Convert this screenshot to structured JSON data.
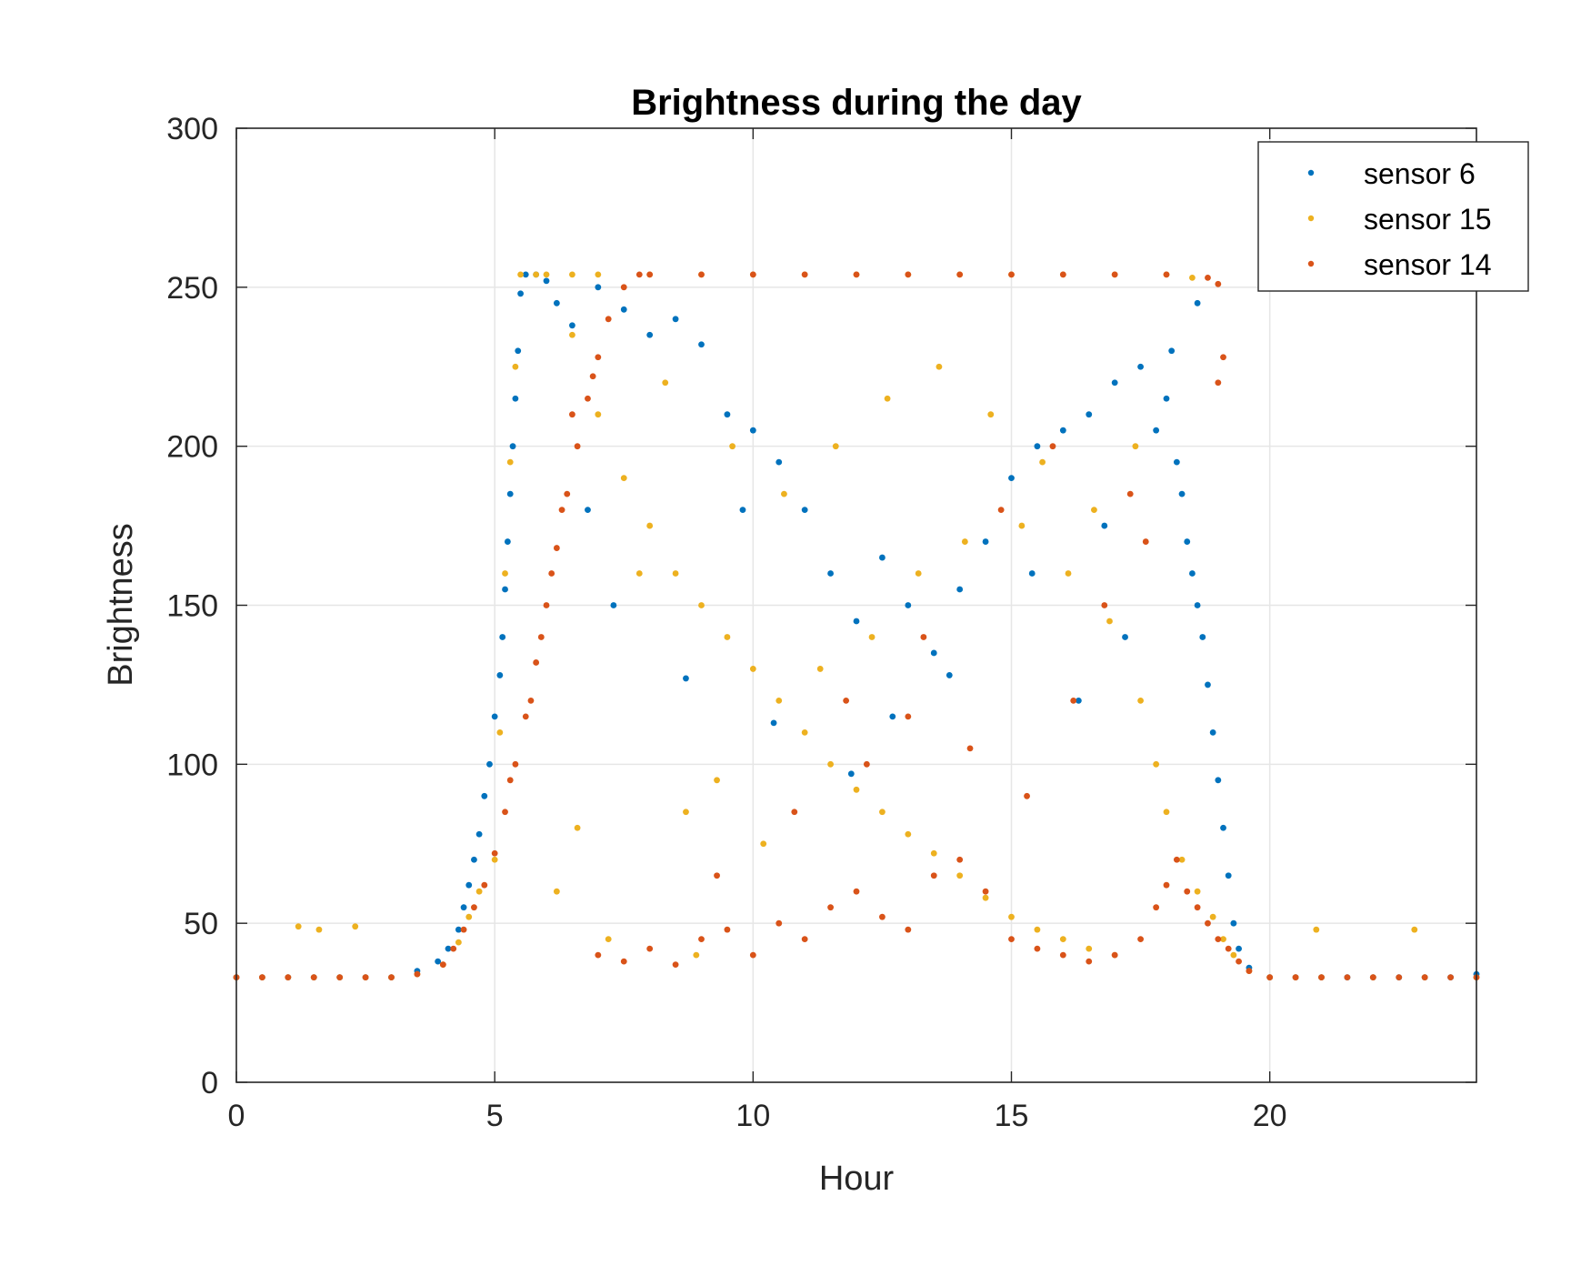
{
  "chart_data": {
    "type": "scatter",
    "title": "Brightness during the day",
    "xlabel": "Hour",
    "ylabel": "Brightness",
    "xlim": [
      0,
      24
    ],
    "ylim": [
      0,
      300
    ],
    "xticks": [
      0,
      5,
      10,
      15,
      20
    ],
    "yticks": [
      0,
      50,
      100,
      150,
      200,
      250,
      300
    ],
    "grid": true,
    "legend_position": "top-right",
    "series": [
      {
        "name": "sensor 6",
        "color": "#0072BD",
        "points": [
          [
            0.0,
            33
          ],
          [
            0.5,
            33
          ],
          [
            1.0,
            33
          ],
          [
            1.5,
            33
          ],
          [
            2.0,
            33
          ],
          [
            2.5,
            33
          ],
          [
            3.0,
            33
          ],
          [
            3.5,
            35
          ],
          [
            3.9,
            38
          ],
          [
            4.1,
            42
          ],
          [
            4.3,
            48
          ],
          [
            4.4,
            55
          ],
          [
            4.5,
            62
          ],
          [
            4.6,
            70
          ],
          [
            4.7,
            78
          ],
          [
            4.8,
            90
          ],
          [
            4.9,
            100
          ],
          [
            5.0,
            115
          ],
          [
            5.1,
            128
          ],
          [
            5.15,
            140
          ],
          [
            5.2,
            155
          ],
          [
            5.25,
            170
          ],
          [
            5.3,
            185
          ],
          [
            5.35,
            200
          ],
          [
            5.4,
            215
          ],
          [
            5.45,
            230
          ],
          [
            5.5,
            248
          ],
          [
            5.6,
            254
          ],
          [
            5.8,
            254
          ],
          [
            6.0,
            252
          ],
          [
            6.2,
            245
          ],
          [
            6.5,
            238
          ],
          [
            7.0,
            250
          ],
          [
            7.5,
            243
          ],
          [
            8.0,
            235
          ],
          [
            8.5,
            240
          ],
          [
            9.0,
            232
          ],
          [
            9.5,
            210
          ],
          [
            10.0,
            205
          ],
          [
            10.5,
            195
          ],
          [
            11.0,
            180
          ],
          [
            11.5,
            160
          ],
          [
            12.0,
            145
          ],
          [
            12.5,
            165
          ],
          [
            13.0,
            150
          ],
          [
            13.5,
            135
          ],
          [
            14.0,
            155
          ],
          [
            14.5,
            170
          ],
          [
            15.0,
            190
          ],
          [
            15.5,
            200
          ],
          [
            16.0,
            205
          ],
          [
            16.5,
            210
          ],
          [
            17.0,
            220
          ],
          [
            17.5,
            225
          ],
          [
            17.8,
            205
          ],
          [
            18.0,
            215
          ],
          [
            18.2,
            195
          ],
          [
            18.3,
            185
          ],
          [
            18.4,
            170
          ],
          [
            18.5,
            160
          ],
          [
            18.6,
            150
          ],
          [
            18.7,
            140
          ],
          [
            18.8,
            125
          ],
          [
            18.9,
            110
          ],
          [
            19.0,
            95
          ],
          [
            19.1,
            80
          ],
          [
            19.2,
            65
          ],
          [
            19.3,
            50
          ],
          [
            19.4,
            42
          ],
          [
            19.6,
            36
          ],
          [
            20.0,
            33
          ],
          [
            20.5,
            33
          ],
          [
            21.0,
            33
          ],
          [
            21.5,
            33
          ],
          [
            22.0,
            33
          ],
          [
            22.5,
            33
          ],
          [
            23.0,
            33
          ],
          [
            23.5,
            33
          ],
          [
            24.0,
            34
          ],
          [
            8.7,
            127
          ],
          [
            10.4,
            113
          ],
          [
            11.9,
            97
          ],
          [
            12.7,
            115
          ],
          [
            13.8,
            128
          ],
          [
            16.3,
            120
          ],
          [
            17.2,
            140
          ],
          [
            6.8,
            180
          ],
          [
            7.3,
            150
          ],
          [
            9.8,
            180
          ],
          [
            15.4,
            160
          ],
          [
            16.8,
            175
          ],
          [
            18.1,
            230
          ],
          [
            18.6,
            245
          ]
        ]
      },
      {
        "name": "sensor 15",
        "color": "#EDB120",
        "points": [
          [
            0.0,
            33
          ],
          [
            0.5,
            33
          ],
          [
            1.0,
            33
          ],
          [
            1.2,
            49
          ],
          [
            1.5,
            33
          ],
          [
            1.6,
            48
          ],
          [
            2.0,
            33
          ],
          [
            2.3,
            49
          ],
          [
            2.5,
            33
          ],
          [
            3.0,
            33
          ],
          [
            3.5,
            34
          ],
          [
            4.0,
            37
          ],
          [
            4.3,
            44
          ],
          [
            4.5,
            52
          ],
          [
            4.7,
            60
          ],
          [
            5.0,
            70
          ],
          [
            5.1,
            110
          ],
          [
            5.2,
            160
          ],
          [
            5.3,
            195
          ],
          [
            5.4,
            225
          ],
          [
            5.5,
            254
          ],
          [
            5.8,
            254
          ],
          [
            6.0,
            254
          ],
          [
            6.5,
            254
          ],
          [
            7.0,
            254
          ],
          [
            8.0,
            254
          ],
          [
            9.0,
            254
          ],
          [
            10.0,
            254
          ],
          [
            11.0,
            254
          ],
          [
            12.0,
            254
          ],
          [
            13.0,
            254
          ],
          [
            14.0,
            254
          ],
          [
            15.0,
            254
          ],
          [
            16.0,
            254
          ],
          [
            17.0,
            254
          ],
          [
            18.0,
            254
          ],
          [
            18.5,
            253
          ],
          [
            6.5,
            235
          ],
          [
            7.0,
            210
          ],
          [
            7.5,
            190
          ],
          [
            8.0,
            175
          ],
          [
            8.5,
            160
          ],
          [
            9.0,
            150
          ],
          [
            9.5,
            140
          ],
          [
            10.0,
            130
          ],
          [
            10.5,
            120
          ],
          [
            11.0,
            110
          ],
          [
            11.5,
            100
          ],
          [
            12.0,
            92
          ],
          [
            12.5,
            85
          ],
          [
            13.0,
            78
          ],
          [
            13.5,
            72
          ],
          [
            14.0,
            65
          ],
          [
            14.5,
            58
          ],
          [
            15.0,
            52
          ],
          [
            15.5,
            48
          ],
          [
            16.0,
            45
          ],
          [
            16.5,
            42
          ],
          [
            17.0,
            40
          ],
          [
            8.7,
            85
          ],
          [
            9.3,
            95
          ],
          [
            10.2,
            75
          ],
          [
            11.3,
            130
          ],
          [
            12.3,
            140
          ],
          [
            13.2,
            160
          ],
          [
            14.1,
            170
          ],
          [
            15.2,
            175
          ],
          [
            16.1,
            160
          ],
          [
            16.9,
            145
          ],
          [
            17.5,
            120
          ],
          [
            17.8,
            100
          ],
          [
            18.0,
            85
          ],
          [
            18.3,
            70
          ],
          [
            18.6,
            60
          ],
          [
            18.9,
            52
          ],
          [
            19.1,
            45
          ],
          [
            19.3,
            40
          ],
          [
            19.6,
            35
          ],
          [
            20.0,
            33
          ],
          [
            20.5,
            33
          ],
          [
            20.9,
            48
          ],
          [
            21.0,
            33
          ],
          [
            22.0,
            33
          ],
          [
            22.8,
            48
          ],
          [
            23.0,
            33
          ],
          [
            24.0,
            33
          ],
          [
            7.8,
            160
          ],
          [
            8.3,
            220
          ],
          [
            9.6,
            200
          ],
          [
            10.6,
            185
          ],
          [
            11.6,
            200
          ],
          [
            12.6,
            215
          ],
          [
            13.6,
            225
          ],
          [
            14.6,
            210
          ],
          [
            15.6,
            195
          ],
          [
            16.6,
            180
          ],
          [
            17.4,
            200
          ],
          [
            6.2,
            60
          ],
          [
            6.6,
            80
          ],
          [
            7.2,
            45
          ],
          [
            8.9,
            40
          ]
        ]
      },
      {
        "name": "sensor 14",
        "color": "#D95319",
        "points": [
          [
            0.0,
            33
          ],
          [
            0.5,
            33
          ],
          [
            1.0,
            33
          ],
          [
            1.5,
            33
          ],
          [
            2.0,
            33
          ],
          [
            2.5,
            33
          ],
          [
            3.0,
            33
          ],
          [
            3.5,
            34
          ],
          [
            4.0,
            37
          ],
          [
            4.2,
            42
          ],
          [
            4.4,
            48
          ],
          [
            4.6,
            55
          ],
          [
            4.8,
            62
          ],
          [
            5.0,
            72
          ],
          [
            5.2,
            85
          ],
          [
            5.4,
            100
          ],
          [
            5.6,
            115
          ],
          [
            5.8,
            132
          ],
          [
            6.0,
            150
          ],
          [
            6.2,
            168
          ],
          [
            6.4,
            185
          ],
          [
            6.6,
            200
          ],
          [
            6.8,
            215
          ],
          [
            7.0,
            228
          ],
          [
            7.2,
            240
          ],
          [
            7.5,
            250
          ],
          [
            7.8,
            254
          ],
          [
            8.0,
            254
          ],
          [
            9.0,
            254
          ],
          [
            10.0,
            254
          ],
          [
            11.0,
            254
          ],
          [
            12.0,
            254
          ],
          [
            13.0,
            254
          ],
          [
            14.0,
            254
          ],
          [
            15.0,
            254
          ],
          [
            16.0,
            254
          ],
          [
            17.0,
            254
          ],
          [
            18.0,
            254
          ],
          [
            18.8,
            253
          ],
          [
            19.0,
            251
          ],
          [
            19.1,
            228
          ],
          [
            19.0,
            220
          ],
          [
            6.5,
            210
          ],
          [
            6.1,
            160
          ],
          [
            5.7,
            120
          ],
          [
            5.3,
            95
          ],
          [
            5.9,
            140
          ],
          [
            6.3,
            180
          ],
          [
            6.9,
            222
          ],
          [
            7.0,
            40
          ],
          [
            7.5,
            38
          ],
          [
            8.0,
            42
          ],
          [
            8.5,
            37
          ],
          [
            9.0,
            45
          ],
          [
            9.5,
            48
          ],
          [
            10.0,
            40
          ],
          [
            10.5,
            50
          ],
          [
            11.0,
            45
          ],
          [
            11.5,
            55
          ],
          [
            12.0,
            60
          ],
          [
            12.5,
            52
          ],
          [
            13.0,
            48
          ],
          [
            13.5,
            65
          ],
          [
            14.0,
            70
          ],
          [
            14.5,
            60
          ],
          [
            15.0,
            45
          ],
          [
            15.5,
            42
          ],
          [
            16.0,
            40
          ],
          [
            16.5,
            38
          ],
          [
            17.0,
            40
          ],
          [
            17.5,
            45
          ],
          [
            17.8,
            55
          ],
          [
            18.0,
            62
          ],
          [
            18.2,
            70
          ],
          [
            18.4,
            60
          ],
          [
            18.6,
            55
          ],
          [
            18.8,
            50
          ],
          [
            19.0,
            45
          ],
          [
            19.2,
            42
          ],
          [
            19.4,
            38
          ],
          [
            19.6,
            35
          ],
          [
            20.0,
            33
          ],
          [
            20.5,
            33
          ],
          [
            21.0,
            33
          ],
          [
            21.5,
            33
          ],
          [
            22.0,
            33
          ],
          [
            22.5,
            33
          ],
          [
            23.0,
            33
          ],
          [
            23.5,
            33
          ],
          [
            24.0,
            33
          ],
          [
            12.2,
            100
          ],
          [
            13.0,
            115
          ],
          [
            14.2,
            105
          ],
          [
            15.3,
            90
          ],
          [
            16.2,
            120
          ],
          [
            16.8,
            150
          ],
          [
            17.3,
            185
          ],
          [
            17.6,
            170
          ],
          [
            15.8,
            200
          ],
          [
            14.8,
            180
          ],
          [
            13.3,
            140
          ],
          [
            11.8,
            120
          ],
          [
            10.8,
            85
          ],
          [
            9.3,
            65
          ]
        ]
      }
    ]
  }
}
